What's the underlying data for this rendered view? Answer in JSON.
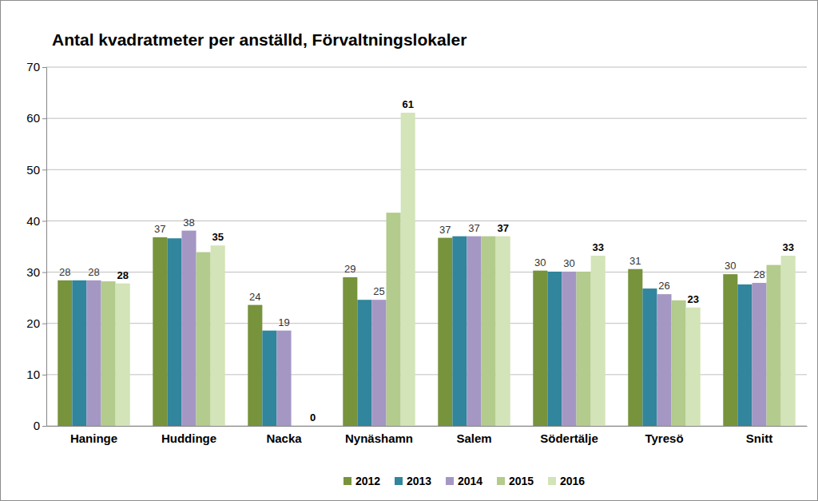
{
  "chart_data": {
    "type": "bar",
    "title": "Antal kvadratmeter per anställd, Förvaltningslokaler",
    "categories": [
      "Haninge",
      "Huddinge",
      "Nacka",
      "Nynäshamn",
      "Salem",
      "Södertälje",
      "Tyresö",
      "Snitt"
    ],
    "series": [
      {
        "name": "2012",
        "color": "#77933c",
        "values": [
          28.4,
          36.8,
          23.6,
          29.0,
          36.7,
          30.3,
          30.6,
          29.6
        ],
        "value_labels": [
          "28",
          "37",
          "24",
          "29",
          "37",
          "30",
          "31",
          "30"
        ]
      },
      {
        "name": "2013",
        "color": "#31859c",
        "values": [
          28.4,
          36.6,
          18.6,
          24.6,
          37.0,
          30.1,
          26.8,
          27.6
        ]
      },
      {
        "name": "2014",
        "color": "#a597c4",
        "values": [
          28.4,
          38.1,
          18.6,
          24.6,
          37.0,
          30.1,
          25.7,
          27.9
        ],
        "value_labels": [
          "28",
          "38",
          "19",
          "25",
          "37",
          "30",
          "26",
          "28"
        ]
      },
      {
        "name": "2015",
        "color": "#b3cb8c",
        "values": [
          28.2,
          33.9,
          null,
          41.6,
          37.0,
          30.1,
          24.5,
          31.4
        ]
      },
      {
        "name": "2016",
        "color": "#d3e4b8",
        "values": [
          27.8,
          35.2,
          0,
          61.1,
          37.0,
          33.2,
          23.1,
          33.2
        ],
        "value_labels": [
          "28",
          "35",
          "0",
          "61",
          "37",
          "33",
          "23",
          "33"
        ]
      }
    ],
    "ylim": [
      0,
      70
    ],
    "yticks": [
      0,
      10,
      20,
      30,
      40,
      50,
      60,
      70
    ],
    "grid": true,
    "legend": "bottom"
  }
}
